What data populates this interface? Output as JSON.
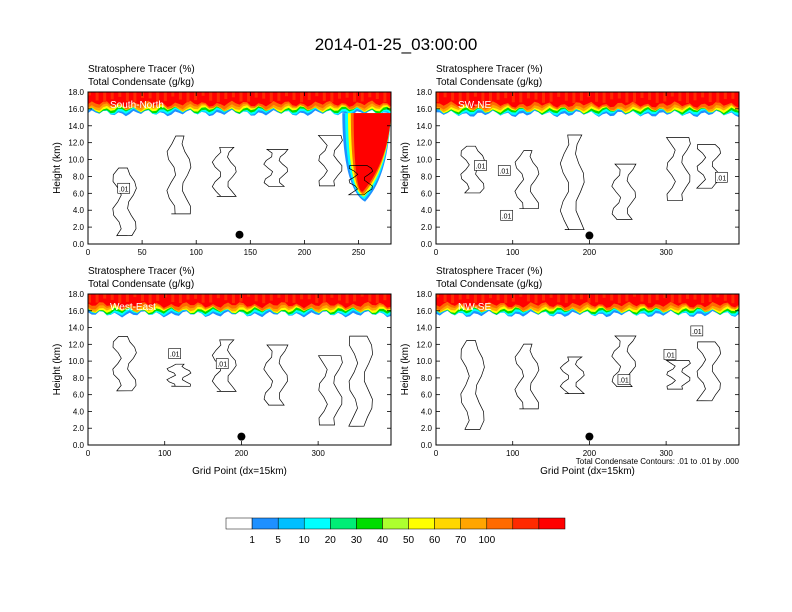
{
  "figure_title": "2014-01-25_03:00:00",
  "colorbar": {
    "levels": [
      "1",
      "5",
      "10",
      "20",
      "30",
      "40",
      "50",
      "60",
      "70",
      "100"
    ],
    "colors": [
      "#ffffff",
      "#1e90ff",
      "#00bfff",
      "#00ffff",
      "#00ee76",
      "#00dd00",
      "#adff2f",
      "#ffff00",
      "#ffd700",
      "#ffa500",
      "#ff6a00",
      "#ff2a00",
      "#ff0000"
    ]
  },
  "contour_note": "Total Condensate Contours: .01 to .01 by .000",
  "chart_data": [
    {
      "type": "heatmap",
      "title": "Stratosphere Tracer   (%)",
      "subtitle": "Total Condensate   (g/kg)",
      "annotation": "South-North",
      "ylabel": "Height (km)",
      "xlabel": "",
      "xlim": [
        0,
        280
      ],
      "ylim": [
        0,
        18
      ],
      "xticks": [
        "0",
        "50",
        "100",
        "150",
        "200",
        "250"
      ],
      "yticks": [
        "0.0",
        "2.0",
        "4.0",
        "6.0",
        "8.0",
        "10.0",
        "12.0",
        "14.0",
        "16.0",
        "18.0"
      ],
      "tropopause_km": 15.5,
      "fold": {
        "x_start": 235,
        "x_end": 270,
        "y_top": 15.5,
        "y_bottom": 5.0
      },
      "marker": {
        "x": 140,
        "y": 1.1
      },
      "contour_labels": [
        {
          "text": ".01",
          "x": 33,
          "y": 6.6
        }
      ]
    },
    {
      "type": "heatmap",
      "title": "Stratosphere Tracer   (%)",
      "subtitle": "Total Condensate   (g/kg)",
      "annotation": "SW-NE",
      "ylabel": "Height (km)",
      "xlabel": "",
      "xlim": [
        0,
        395
      ],
      "ylim": [
        0,
        18
      ],
      "xticks": [
        "0",
        "100",
        "200",
        "300"
      ],
      "yticks": [
        "0.0",
        "2.0",
        "4.0",
        "6.0",
        "8.0",
        "10.0",
        "12.0",
        "14.0",
        "16.0",
        "18.0"
      ],
      "tropopause_km": 15.4,
      "marker": {
        "x": 200,
        "y": 1.0
      },
      "contour_labels": [
        {
          "text": ".01",
          "x": 58,
          "y": 9.3
        },
        {
          "text": ".01",
          "x": 89,
          "y": 8.7
        },
        {
          "text": ".01",
          "x": 92,
          "y": 3.4
        },
        {
          "text": ".01",
          "x": 372,
          "y": 7.9
        }
      ]
    },
    {
      "type": "heatmap",
      "title": "Stratosphere Tracer   (%)",
      "subtitle": "Total Condensate   (g/kg)",
      "annotation": "West-East",
      "ylabel": "Height (km)",
      "xlabel": "Grid Point (dx=15km)",
      "xlim": [
        0,
        395
      ],
      "ylim": [
        0,
        18
      ],
      "xticks": [
        "0",
        "100",
        "200",
        "300"
      ],
      "yticks": [
        "0.0",
        "2.0",
        "4.0",
        "6.0",
        "8.0",
        "10.0",
        "12.0",
        "14.0",
        "16.0",
        "18.0"
      ],
      "tropopause_km": 15.6,
      "marker": {
        "x": 200,
        "y": 1.0
      },
      "contour_labels": [
        {
          "text": ".01",
          "x": 113,
          "y": 10.9
        },
        {
          "text": ".01",
          "x": 175,
          "y": 9.7
        }
      ]
    },
    {
      "type": "heatmap",
      "title": "Stratosphere Tracer   (%)",
      "subtitle": "Total Condensate   (g/kg)",
      "annotation": "NW-SE",
      "ylabel": "Height (km)",
      "xlabel": "Grid Point (dx=15km)",
      "xlim": [
        0,
        395
      ],
      "ylim": [
        0,
        18
      ],
      "xticks": [
        "0",
        "100",
        "200",
        "300"
      ],
      "yticks": [
        "0.0",
        "2.0",
        "4.0",
        "6.0",
        "8.0",
        "10.0",
        "12.0",
        "14.0",
        "16.0",
        "18.0"
      ],
      "tropopause_km": 15.6,
      "marker": {
        "x": 200,
        "y": 1.0
      },
      "contour_labels": [
        {
          "text": ".01",
          "x": 245,
          "y": 7.8
        },
        {
          "text": ".01",
          "x": 305,
          "y": 10.8
        },
        {
          "text": ".01",
          "x": 340,
          "y": 13.6
        }
      ]
    }
  ]
}
